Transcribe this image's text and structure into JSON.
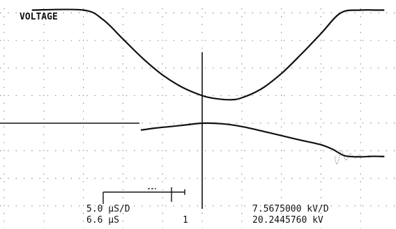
{
  "chart_data": {
    "type": "line",
    "title": "VOLTAGE",
    "x_divisions": 10,
    "y_divisions": 8,
    "grid": true,
    "series": [
      {
        "x": [
          -4.3,
          -3.0,
          -2.5,
          -2.0,
          -1.5,
          -1.0,
          -0.5,
          0.0,
          0.3,
          0.7,
          1.0,
          1.5,
          2.0,
          2.5,
          3.0,
          3.5,
          4.0,
          4.4,
          4.6
        ],
        "y": [
          4.1,
          4.1,
          3.75,
          3.05,
          2.35,
          1.75,
          1.3,
          1.0,
          0.9,
          0.85,
          0.92,
          1.25,
          1.8,
          2.5,
          3.25,
          4.0,
          4.1,
          4.1,
          4.1
        ],
        "color": "#111111"
      },
      {
        "x": [
          -1.55,
          -1.2,
          -0.8,
          -0.4,
          0.0,
          0.5,
          1.0,
          1.5,
          2.0,
          2.5,
          3.0,
          3.3,
          3.6,
          4.0,
          4.3,
          4.6
        ],
        "y": [
          -0.25,
          -0.18,
          -0.12,
          -0.06,
          0.0,
          -0.02,
          -0.12,
          -0.28,
          -0.45,
          -0.62,
          -0.78,
          -0.95,
          -1.18,
          -1.22,
          -1.2,
          -1.21
        ],
        "color": "#111111"
      }
    ]
  },
  "readout": {
    "time_per_div": "5.0 µS/D",
    "time_position": "6.6 µS",
    "channel": "1",
    "volts_per_div": "7.5675000 kV/D",
    "voltage_value": "20.2445760 kV"
  }
}
